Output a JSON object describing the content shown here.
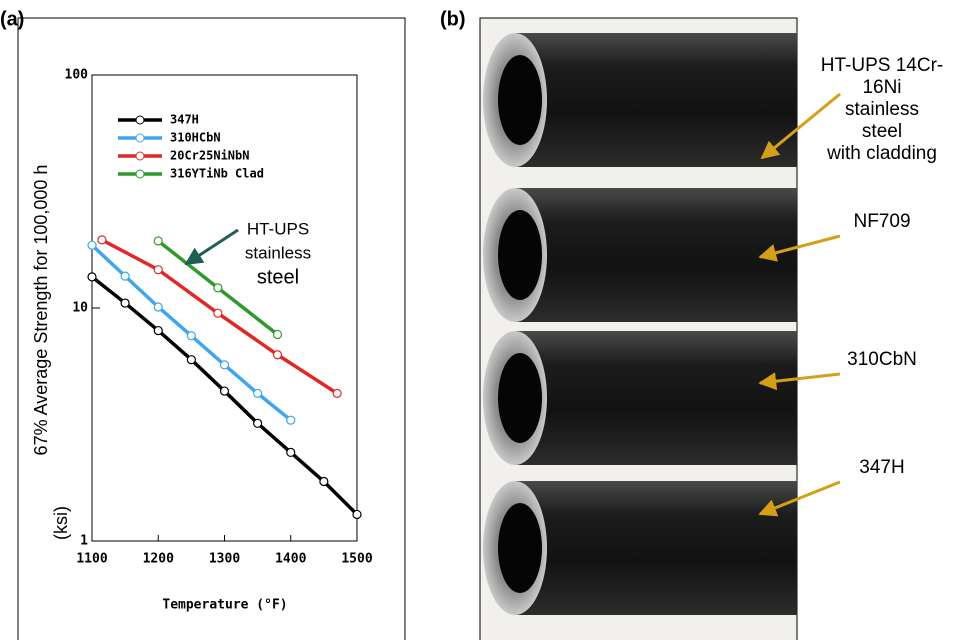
{
  "panel_labels": [
    "(a)",
    "(b)"
  ],
  "chart_data": {
    "type": "line",
    "xlabel": "Temperature (°F)",
    "ylabel": "67% Average Strength for 100,000 h",
    "ylabel_unit": "(ksi)",
    "xlim": [
      1100,
      1500
    ],
    "xticks": [
      1100,
      1200,
      1300,
      1400,
      1500
    ],
    "ylim": [
      1,
      100
    ],
    "yticks": [
      1,
      10,
      100
    ],
    "log_y": true,
    "legend": "upper left",
    "series": [
      {
        "name": "347H",
        "color": "#000000",
        "x": [
          1100,
          1150,
          1200,
          1250,
          1300,
          1350,
          1400,
          1450,
          1500
        ],
        "values": [
          13.6,
          10.5,
          8.0,
          6.0,
          4.4,
          3.2,
          2.4,
          1.8,
          1.3
        ]
      },
      {
        "name": "310HCbN",
        "color": "#3ea6ef",
        "x": [
          1100,
          1150,
          1200,
          1250,
          1300,
          1350,
          1400
        ],
        "values": [
          18.6,
          13.7,
          10.1,
          7.6,
          5.7,
          4.3,
          3.3
        ]
      },
      {
        "name": "20Cr25NiNbN",
        "color": "#e02828",
        "x": [
          1115,
          1200,
          1290,
          1380,
          1470
        ],
        "values": [
          19.6,
          14.6,
          9.5,
          6.3,
          4.3
        ]
      },
      {
        "name": "316YTiNb Clad",
        "color": "#2e9a2e",
        "x": [
          1200,
          1290,
          1380
        ],
        "values": [
          19.4,
          12.2,
          7.7
        ]
      }
    ],
    "annotation": [
      "HT-UPS",
      "stainless",
      "steel"
    ]
  },
  "photo": {
    "labels": [
      [
        "HT-UPS 14Cr-",
        "16Ni",
        "stainless",
        "steel",
        "with cladding"
      ],
      [
        "NF709"
      ],
      [
        "310CbN"
      ],
      [
        "347H"
      ]
    ]
  }
}
